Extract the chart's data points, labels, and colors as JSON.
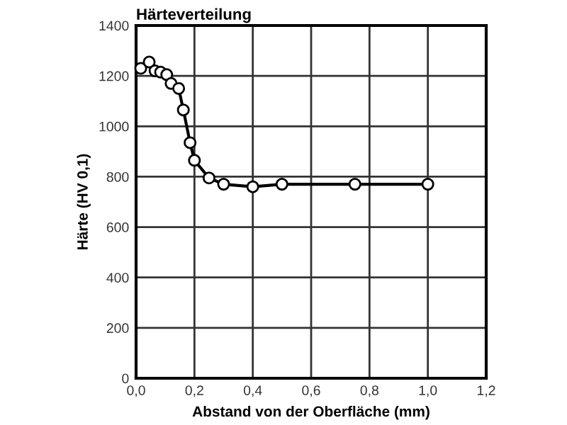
{
  "chart_data": {
    "type": "line",
    "title": "Härteverteilung",
    "xlabel": "Abstand von der Oberfläche (mm)",
    "ylabel": "Härte (HV 0,1)",
    "x": [
      0.016,
      0.045,
      0.065,
      0.084,
      0.105,
      0.12,
      0.146,
      0.162,
      0.185,
      0.2,
      0.25,
      0.3,
      0.4,
      0.5,
      0.75,
      1.0
    ],
    "series": [
      {
        "color": "#000000",
        "values": [
          1230,
          1255,
          1220,
          1215,
          1205,
          1170,
          1150,
          1065,
          935,
          865,
          795,
          770,
          760,
          770,
          770,
          770
        ]
      }
    ],
    "xlim": [
      0,
      1.2
    ],
    "ylim": [
      0,
      1400
    ],
    "xticks": [
      {
        "value": 0,
        "label": "0,0"
      },
      {
        "value": 0.2,
        "label": "0,2"
      },
      {
        "value": 0.4,
        "label": "0,4"
      },
      {
        "value": 0.6,
        "label": "0,6"
      },
      {
        "value": 0.8,
        "label": "0,8"
      },
      {
        "value": 1.0,
        "label": "1,0"
      },
      {
        "value": 1.2,
        "label": "1,2"
      }
    ],
    "yticks": [
      0,
      200,
      400,
      600,
      800,
      1000,
      1200,
      1400
    ],
    "grid": true,
    "marker": "circle",
    "line_style": "solid"
  }
}
